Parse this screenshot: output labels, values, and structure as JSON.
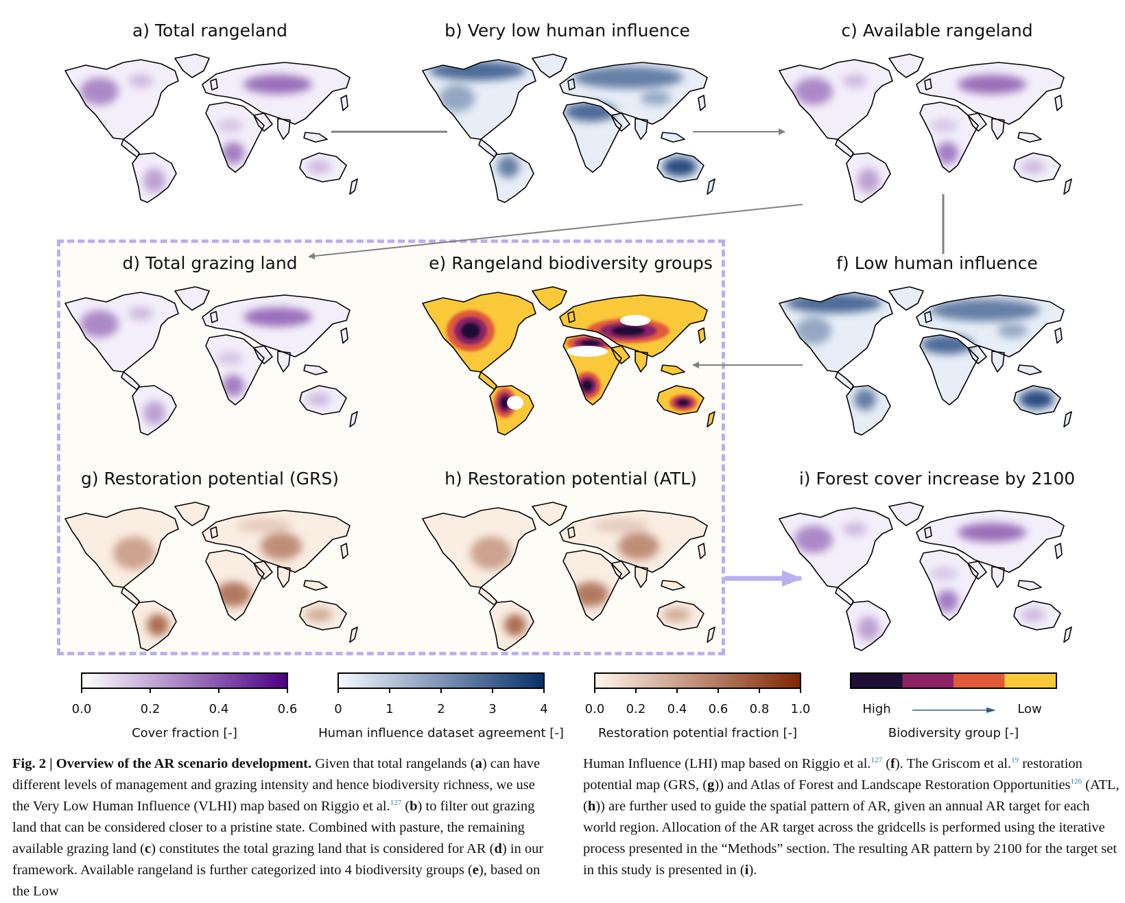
{
  "panels": {
    "a": {
      "title": "a) Total rangeland",
      "palette": "purple"
    },
    "b": {
      "title": "b) Very low human influence",
      "palette": "blue"
    },
    "c": {
      "title": "c) Available rangeland",
      "palette": "purple"
    },
    "d": {
      "title": "d) Total grazing land",
      "palette": "purple"
    },
    "e": {
      "title": "e) Rangeland biodiversity groups",
      "palette": "groups"
    },
    "f": {
      "title": "f) Low human influence",
      "palette": "blue"
    },
    "g": {
      "title": "g) Restoration potential (GRS)",
      "palette": "orange"
    },
    "h": {
      "title": "h) Restoration potential (ATL)",
      "palette": "orange"
    },
    "i": {
      "title": "i) Forest cover increase by 2100",
      "palette": "purple"
    }
  },
  "colorbars": [
    {
      "ticks": [
        "0.0",
        "0.2",
        "0.4",
        "0.6"
      ],
      "label": "Cover fraction [-]",
      "colors": [
        "#ffffff",
        "#4b0082"
      ]
    },
    {
      "ticks": [
        "0",
        "1",
        "2",
        "3",
        "4"
      ],
      "label": "Human influence dataset agreement [-]",
      "colors": [
        "#f4f9ff",
        "#08306b"
      ]
    },
    {
      "ticks": [
        "0.0",
        "0.2",
        "0.4",
        "0.6",
        "0.8",
        "1.0"
      ],
      "label": "Restoration potential fraction [-]",
      "colors": [
        "#fff5eb",
        "#7f2704"
      ]
    },
    {
      "high": "High",
      "low": "Low",
      "label": "Biodiversity group [-]",
      "colors": [
        "#1e1038",
        "#8b2366",
        "#e05a3a",
        "#f9c93a"
      ]
    }
  ],
  "caption": {
    "fig_label": "Fig. 2 | Overview of the AR scenario development.",
    "left": [
      " Given that total rangelands (",
      "a",
      ") can have different levels of management and grazing intensity and hence biodiversity richness, we use the Very Low Human Influence (VLHI) map based on Riggio et al.",
      "127",
      " (",
      "b",
      ") to filter out grazing land that can be considered closer to a pristine state. Combined with pasture, the remaining available grazing land (",
      "c",
      ") constitutes the total grazing land that is considered for AR (",
      "d",
      ") in our framework. Available rangeland is further categorized into 4 biodiversity groups (",
      "e",
      "), based on the Low"
    ],
    "right": [
      "Human Influence (LHI) map based on Riggio et al.",
      "127",
      " (",
      "f",
      "). The Griscom et al.",
      "19",
      " restoration potential map (GRS, (",
      "g",
      ")) and Atlas of Forest and Landscape Restoration Opportunities",
      "126",
      " (ATL, (",
      "h",
      ")) are further used to guide the spatial pattern of AR, given an annual AR target for each world region. Allocation of the AR target across the gridcells is performed using the iterative process presented in the “Methods” section. The resulting AR pattern by 2100 for the target set in this study is presented in (",
      "i",
      ")."
    ]
  }
}
